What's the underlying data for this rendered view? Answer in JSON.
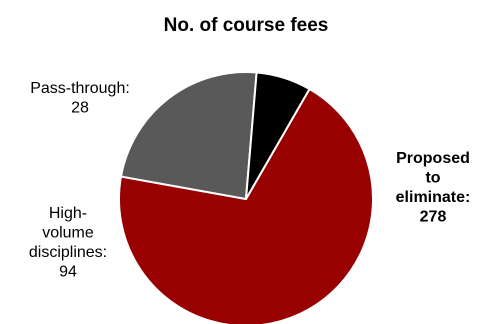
{
  "chart_data": {
    "type": "pie",
    "title": "No. of course fees",
    "slices": [
      {
        "label": "Proposed to eliminate",
        "value": 278,
        "color": "#990000",
        "bold": true
      },
      {
        "label": "High-volume disciplines",
        "value": 94,
        "color": "#595959",
        "bold": false
      },
      {
        "label": "Pass-through",
        "value": 28,
        "color": "#000000",
        "bold": false
      }
    ],
    "labels": [
      {
        "lines": [
          "Proposed",
          "to",
          "eliminate:",
          "278"
        ]
      },
      {
        "lines": [
          "High-",
          "volume",
          "disciplines:",
          "94"
        ]
      },
      {
        "lines": [
          "Pass-through:",
          "28"
        ]
      }
    ],
    "legend": "none"
  }
}
